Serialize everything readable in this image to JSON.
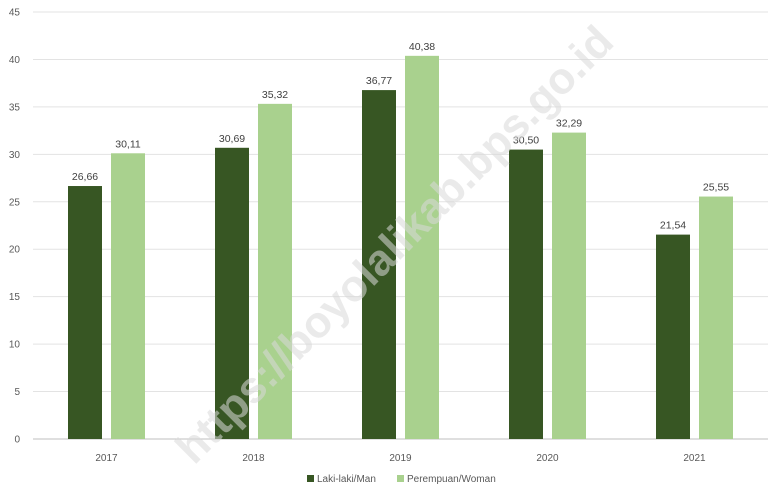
{
  "watermark": "https://boyolalikab.bps.go.id",
  "chart_data": {
    "type": "bar",
    "categories": [
      "2017",
      "2018",
      "2019",
      "2020",
      "2021"
    ],
    "series": [
      {
        "name": "Laki-laki/Man",
        "color": "#375623",
        "values": [
          26.66,
          30.69,
          36.77,
          30.5,
          21.54
        ],
        "labels": [
          "26,66",
          "30,69",
          "36,77",
          "30,50",
          "21,54"
        ]
      },
      {
        "name": "Perempuan/Woman",
        "color": "#a9d18e",
        "values": [
          30.11,
          35.32,
          40.38,
          32.29,
          25.55
        ],
        "labels": [
          "30,11",
          "35,32",
          "40,38",
          "32,29",
          "25,55"
        ]
      }
    ],
    "ylim": [
      0,
      45
    ],
    "yticks": [
      0,
      5,
      10,
      15,
      20,
      25,
      30,
      35,
      40,
      45
    ],
    "grid": true,
    "legend_position": "bottom",
    "title": "",
    "xlabel": "",
    "ylabel": ""
  }
}
